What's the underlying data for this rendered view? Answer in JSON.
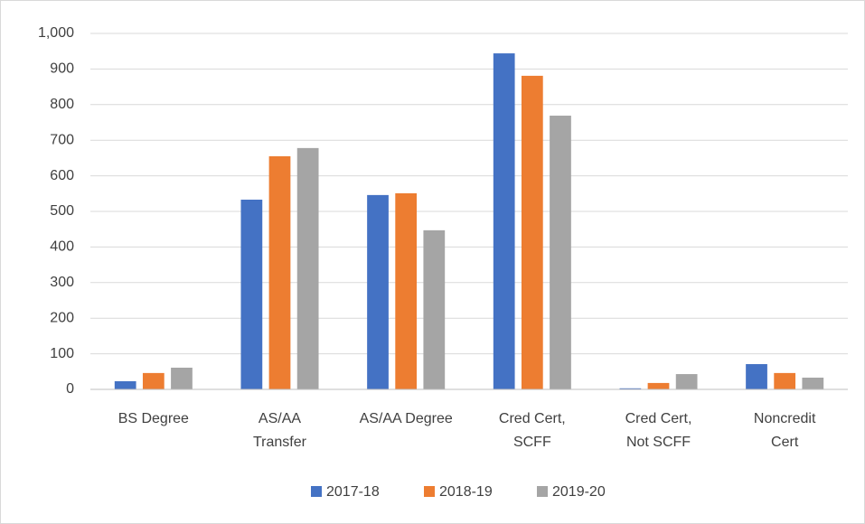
{
  "chart_data": {
    "type": "bar",
    "categories": [
      [
        "BS Degree"
      ],
      [
        "AS/AA",
        "Transfer"
      ],
      [
        "AS/AA Degree"
      ],
      [
        "Cred Cert,",
        "SCFF"
      ],
      [
        "Cred Cert,",
        "Not SCFF"
      ],
      [
        "Noncredit",
        "Cert"
      ]
    ],
    "series": [
      {
        "name": "2017-18",
        "color": "#4472c4",
        "values": [
          23,
          533,
          546,
          944,
          3,
          71
        ]
      },
      {
        "name": "2018-19",
        "color": "#ed7d31",
        "values": [
          46,
          655,
          551,
          881,
          18,
          46
        ]
      },
      {
        "name": "2019-20",
        "color": "#a5a5a5",
        "values": [
          61,
          678,
          447,
          769,
          43,
          33
        ]
      }
    ],
    "ylim": [
      0,
      1000
    ],
    "yticks": [
      0,
      100,
      200,
      300,
      400,
      500,
      600,
      700,
      800,
      900,
      {
        "value": 1000,
        "label": "1,000"
      }
    ],
    "grid": true,
    "legend": "bottom"
  }
}
